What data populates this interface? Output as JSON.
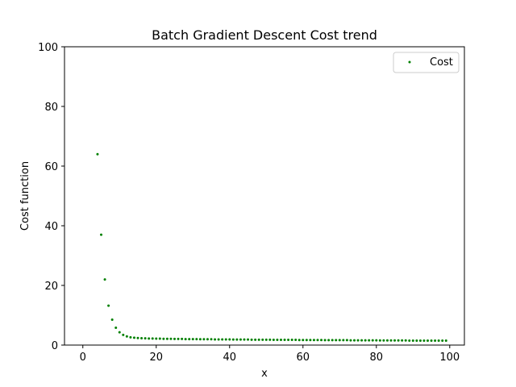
{
  "chart_data": {
    "type": "scatter",
    "title": "Batch Gradient Descent Cost trend",
    "xlabel": "x",
    "ylabel": "Cost function",
    "xlim": [
      -5,
      104
    ],
    "ylim": [
      0,
      100
    ],
    "xticks": [
      0,
      20,
      40,
      60,
      80,
      100
    ],
    "yticks": [
      0,
      20,
      40,
      60,
      80,
      100
    ],
    "grid": false,
    "legend_position": "top-right",
    "series": [
      {
        "name": "Cost",
        "color": "#008000",
        "marker": "point",
        "x": [
          4,
          5,
          6,
          7,
          8,
          9,
          10,
          11,
          12,
          13,
          14,
          15,
          16,
          17,
          18,
          19,
          20,
          21,
          22,
          23,
          24,
          25,
          26,
          27,
          28,
          29,
          30,
          31,
          32,
          33,
          34,
          35,
          36,
          37,
          38,
          39,
          40,
          41,
          42,
          43,
          44,
          45,
          46,
          47,
          48,
          49,
          50,
          51,
          52,
          53,
          54,
          55,
          56,
          57,
          58,
          59,
          60,
          61,
          62,
          63,
          64,
          65,
          66,
          67,
          68,
          69,
          70,
          71,
          72,
          73,
          74,
          75,
          76,
          77,
          78,
          79,
          80,
          81,
          82,
          83,
          84,
          85,
          86,
          87,
          88,
          89,
          90,
          91,
          92,
          93,
          94,
          95,
          96,
          97,
          98,
          99
        ],
        "y": [
          64,
          37,
          22,
          13.2,
          8.5,
          5.8,
          4.3,
          3.4,
          2.9,
          2.6,
          2.45,
          2.35,
          2.3,
          2.25,
          2.2,
          2.2,
          2.15,
          2.15,
          2.1,
          2.1,
          2.1,
          2.05,
          2.05,
          2.05,
          2.0,
          2.0,
          2.0,
          2.0,
          1.95,
          1.95,
          1.95,
          1.95,
          1.9,
          1.9,
          1.9,
          1.9,
          1.9,
          1.85,
          1.85,
          1.85,
          1.85,
          1.85,
          1.8,
          1.8,
          1.8,
          1.8,
          1.8,
          1.8,
          1.75,
          1.75,
          1.75,
          1.75,
          1.75,
          1.75,
          1.75,
          1.7,
          1.7,
          1.7,
          1.7,
          1.7,
          1.7,
          1.7,
          1.65,
          1.65,
          1.65,
          1.65,
          1.65,
          1.65,
          1.65,
          1.6,
          1.6,
          1.6,
          1.6,
          1.6,
          1.6,
          1.6,
          1.6,
          1.55,
          1.55,
          1.55,
          1.55,
          1.55,
          1.55,
          1.55,
          1.55,
          1.5,
          1.5,
          1.5,
          1.5,
          1.5,
          1.5,
          1.5,
          1.5,
          1.5,
          1.5,
          1.5
        ]
      }
    ]
  }
}
